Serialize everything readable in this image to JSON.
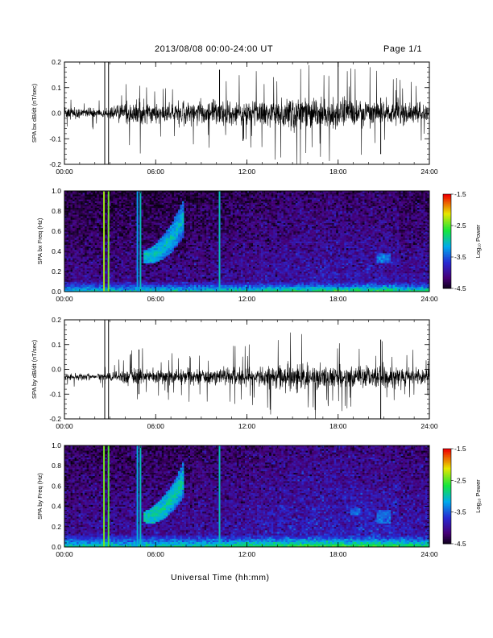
{
  "header": {
    "title": "2013/08/08  00:00-24:00 UT",
    "page": "Page 1/1"
  },
  "x_axis_title": "Universal Time (hh:mm)",
  "colorbar": {
    "label": "Log₁₀ Power",
    "ticks": [
      "-1.5",
      "-2.5",
      "-3.5",
      "-4.5"
    ]
  },
  "chart_data": [
    {
      "type": "line",
      "ylabel": "SPA bx dB/dt (nT/sec)",
      "xlim": [
        0,
        24
      ],
      "ylim": [
        -0.2,
        0.2
      ],
      "x_ticks": [
        "00:00",
        "06:00",
        "12:00",
        "18:00",
        "24:00"
      ],
      "y_ticks": [
        "0.2",
        "0.1",
        "0.0",
        "-0.1",
        "-0.2"
      ],
      "activity_profile": [
        {
          "hour": 0,
          "amplitude": 0.03
        },
        {
          "hour": 2.7,
          "amplitude": 0.03
        },
        {
          "hour": 4.8,
          "amplitude": 0.08
        },
        {
          "hour": 6.0,
          "amplitude": 0.05
        },
        {
          "hour": 8.0,
          "amplitude": 0.07
        },
        {
          "hour": 12.0,
          "amplitude": 0.07
        },
        {
          "hour": 15.0,
          "amplitude": 0.1
        },
        {
          "hour": 17.5,
          "amplitude": 0.09
        },
        {
          "hour": 21.0,
          "amplitude": 0.08
        },
        {
          "hour": 24.0,
          "amplitude": 0.05
        }
      ],
      "spikes": [
        {
          "hour": 2.65,
          "min": -0.2,
          "max": 0.2
        },
        {
          "hour": 2.9,
          "min": -0.2,
          "max": 0.2
        },
        {
          "hour": 10.2,
          "min": -0.03,
          "max": 0.17
        },
        {
          "hour": 18.0,
          "min": -0.02,
          "max": 0.2
        },
        {
          "hour": 20.8,
          "min": -0.16,
          "max": 0.06
        }
      ]
    },
    {
      "type": "heatmap",
      "ylabel": "SPA bx Freq (Hz)",
      "xlim": [
        0,
        24
      ],
      "ylim": [
        0,
        1.0
      ],
      "zlim": [
        -4.5,
        -1.5
      ],
      "x_ticks": [
        "00:00",
        "06:00",
        "12:00",
        "18:00",
        "24:00"
      ],
      "y_ticks": [
        "1.0",
        "0.8",
        "0.6",
        "0.4",
        "0.2",
        "0.0"
      ],
      "noise_floor": -4.0,
      "vertical_lines": [
        {
          "hour": 2.6,
          "value": -2.3
        },
        {
          "hour": 2.9,
          "value": -2.4
        },
        {
          "hour": 4.8,
          "value": -3.2
        },
        {
          "hour": 5.0,
          "value": -3.0
        },
        {
          "hour": 10.2,
          "value": -3.0
        }
      ],
      "features": [
        {
          "name": "pc1-arc",
          "hour_start": 5.2,
          "hour_end": 7.8,
          "freq_low": 0.35,
          "freq_high": 0.72,
          "peak": -3.0
        },
        {
          "name": "pc1-late",
          "hour_start": 20.5,
          "hour_end": 21.5,
          "freq_low": 0.25,
          "freq_high": 0.42,
          "peak": -3.3
        }
      ],
      "low_freq_band": {
        "freq_max": 0.1,
        "peak": -2.6
      }
    },
    {
      "type": "line",
      "ylabel": "SPA by dB/dt (nT/sec)",
      "xlim": [
        0,
        24
      ],
      "ylim": [
        -0.2,
        0.2
      ],
      "x_ticks": [
        "00:00",
        "06:00",
        "12:00",
        "18:00",
        "24:00"
      ],
      "y_ticks": [
        "0.2",
        "0.1",
        "0.0",
        "-0.1",
        "-0.2"
      ],
      "baseline": -0.03,
      "activity_profile": [
        {
          "hour": 0,
          "amplitude": 0.02
        },
        {
          "hour": 2.7,
          "amplitude": 0.02
        },
        {
          "hour": 4.8,
          "amplitude": 0.06
        },
        {
          "hour": 6.0,
          "amplitude": 0.04
        },
        {
          "hour": 9.0,
          "amplitude": 0.05
        },
        {
          "hour": 12.0,
          "amplitude": 0.06
        },
        {
          "hour": 15.0,
          "amplitude": 0.09
        },
        {
          "hour": 18.0,
          "amplitude": 0.07
        },
        {
          "hour": 21.0,
          "amplitude": 0.07
        },
        {
          "hour": 24.0,
          "amplitude": 0.04
        }
      ],
      "spikes": [
        {
          "hour": 2.65,
          "min": -0.2,
          "max": 0.2
        },
        {
          "hour": 2.9,
          "min": -0.2,
          "max": 0.2
        },
        {
          "hour": 4.9,
          "min": -0.1,
          "max": 0.08
        },
        {
          "hour": 20.8,
          "min": -0.2,
          "max": 0.12
        }
      ]
    },
    {
      "type": "heatmap",
      "ylabel": "SPA by Freq (Hz)",
      "xlim": [
        0,
        24
      ],
      "ylim": [
        0,
        1.0
      ],
      "zlim": [
        -4.5,
        -1.5
      ],
      "x_ticks": [
        "00:00",
        "06:00",
        "12:00",
        "18:00",
        "24:00"
      ],
      "y_ticks": [
        "1.0",
        "0.8",
        "0.6",
        "0.4",
        "0.2",
        "0.0"
      ],
      "noise_floor": -3.9,
      "vertical_lines": [
        {
          "hour": 2.6,
          "value": -2.4
        },
        {
          "hour": 2.9,
          "value": -2.5
        },
        {
          "hour": 4.8,
          "value": -3.1
        },
        {
          "hour": 5.0,
          "value": -3.0
        },
        {
          "hour": 10.2,
          "value": -3.0
        }
      ],
      "features": [
        {
          "name": "pc1-arc",
          "hour_start": 5.2,
          "hour_end": 7.8,
          "freq_low": 0.3,
          "freq_high": 0.65,
          "peak": -2.9
        },
        {
          "name": "pc1-late",
          "hour_start": 18.8,
          "hour_end": 19.5,
          "freq_low": 0.3,
          "freq_high": 0.4,
          "peak": -3.4
        },
        {
          "name": "pc1-late-2",
          "hour_start": 20.5,
          "hour_end": 21.5,
          "freq_low": 0.2,
          "freq_high": 0.4,
          "peak": -3.3
        }
      ],
      "low_freq_band": {
        "freq_max": 0.12,
        "peak": -2.5
      }
    }
  ]
}
